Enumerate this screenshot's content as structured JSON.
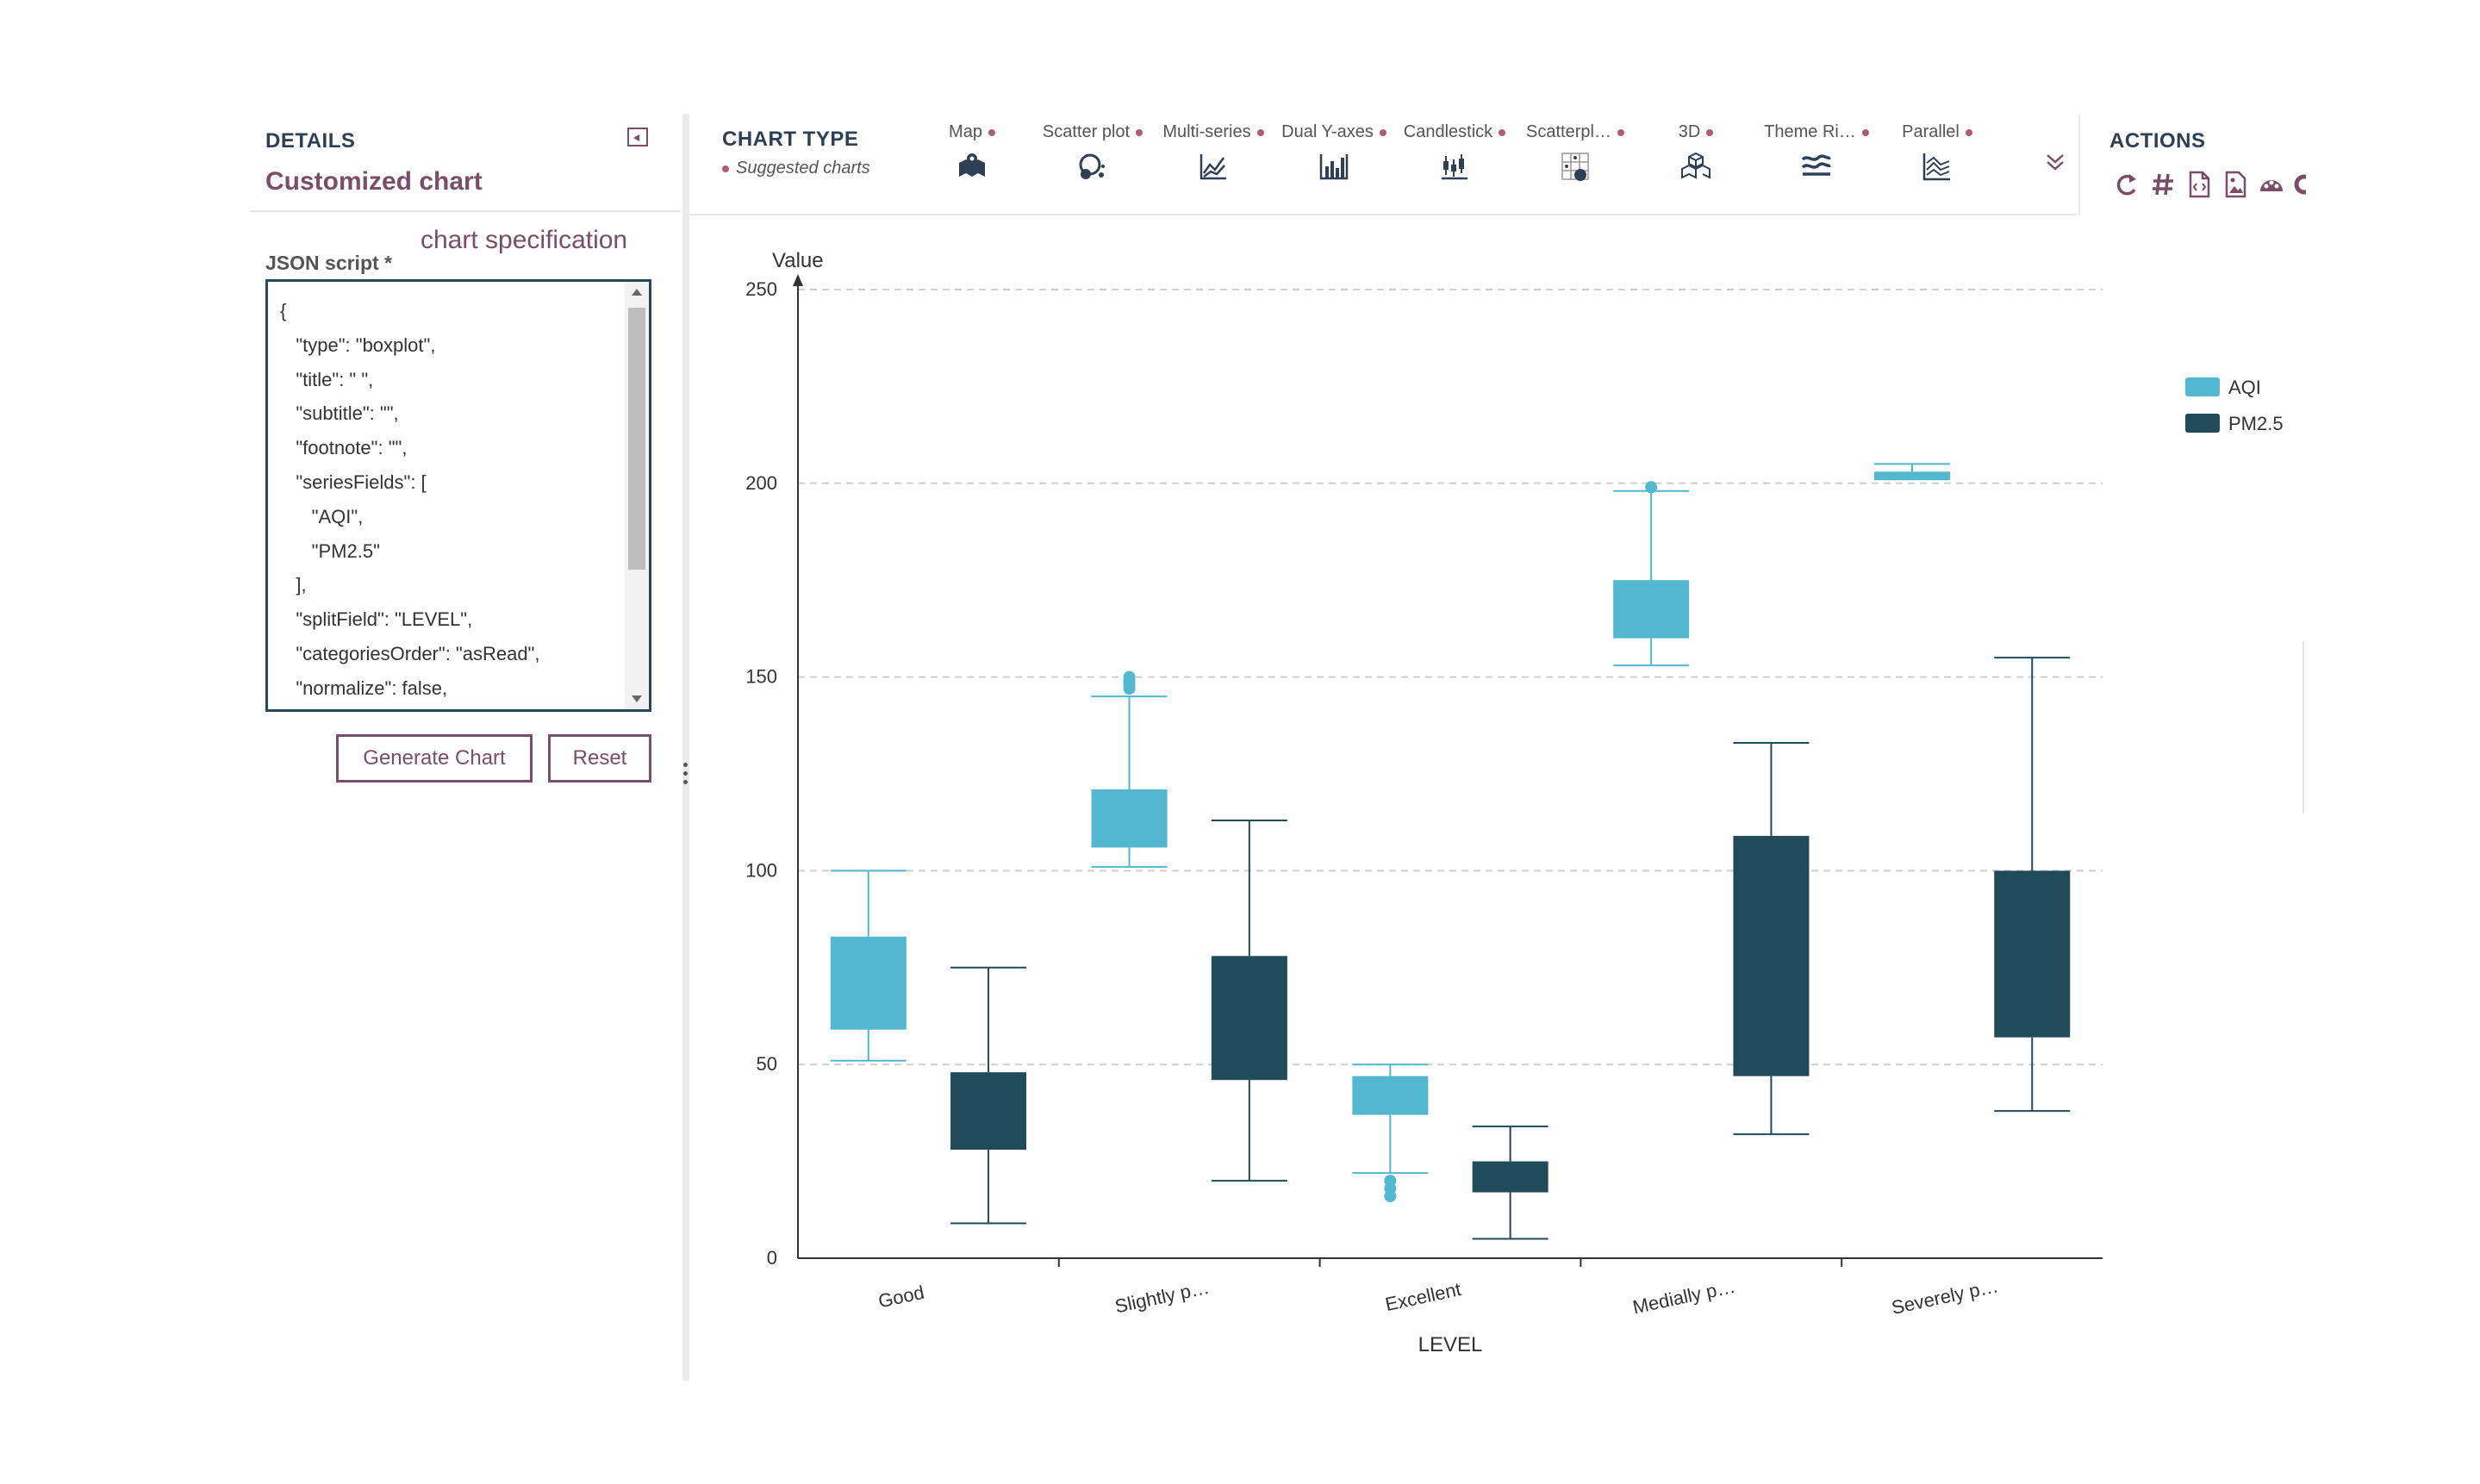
{
  "details": {
    "section_label": "DETAILS",
    "title": "Customized chart",
    "json_label": "JSON script *",
    "spec_note": "chart specification",
    "json_lines": [
      "{",
      "   \"type\": \"boxplot\",",
      "   \"title\": \" \",",
      "   \"subtitle\": \"\",",
      "   \"footnote\": \"\",",
      "   \"seriesFields\": [",
      "      \"AQI\",",
      "      \"PM2.5\"",
      "   ],",
      "   \"splitField\": \"LEVEL\",",
      "   \"categoriesOrder\": \"asRead\",",
      "   \"normalize\": false,"
    ],
    "generate_label": "Generate Chart",
    "reset_label": "Reset"
  },
  "chart_type": {
    "section_label": "CHART TYPE",
    "suggested_label": "Suggested charts",
    "items": [
      {
        "label": "Map",
        "icon": "map-icon"
      },
      {
        "label": "Scatter plot",
        "icon": "scatter-plot-icon"
      },
      {
        "label": "Multi-series",
        "icon": "multi-series-icon"
      },
      {
        "label": "Dual Y-axes",
        "icon": "dual-y-axes-icon"
      },
      {
        "label": "Candlestick",
        "icon": "candlestick-icon"
      },
      {
        "label": "Scatterpl…",
        "icon": "scatterplot-matrix-icon"
      },
      {
        "label": "3D",
        "icon": "3d-icon"
      },
      {
        "label": "Theme Ri…",
        "icon": "theme-river-icon"
      },
      {
        "label": "Parallel",
        "icon": "parallel-icon"
      }
    ]
  },
  "actions": {
    "section_label": "ACTIONS",
    "icons": [
      "refresh-icon",
      "hash-icon",
      "export-code-icon",
      "export-image-icon",
      "dashboard-icon",
      "settings-icon"
    ]
  },
  "colors": {
    "accent": "#7a4e66",
    "aqi": "#52b7cf",
    "pm25": "#224b5a",
    "header_text": "#2f3f55"
  },
  "chart_data": {
    "type": "boxplot",
    "ylabel": "Value",
    "xlabel": "LEVEL",
    "ylim": [
      0,
      250
    ],
    "yticks": [
      0,
      50,
      100,
      150,
      200,
      250
    ],
    "categories": [
      "Good",
      "Slightly p…",
      "Excellent",
      "Medially p…",
      "Severely p…"
    ],
    "legend_position": "top-right",
    "grid": true,
    "series": [
      {
        "name": "AQI",
        "color": "#52b7cf",
        "boxes": [
          {
            "min": 51,
            "q1": 59,
            "q3": 83,
            "max": 100,
            "outliers": []
          },
          {
            "min": 101,
            "q1": 106,
            "q3": 121,
            "max": 145,
            "outliers": [
              147,
              148,
              149,
              150
            ]
          },
          {
            "min": 22,
            "q1": 37,
            "q3": 47,
            "max": 50,
            "outliers": [
              16,
              18,
              20
            ]
          },
          {
            "min": 153,
            "q1": 160,
            "q3": 175,
            "max": 198,
            "outliers": [
              199
            ]
          },
          {
            "min": 201,
            "q1": 201,
            "q3": 203,
            "max": 205,
            "outliers": []
          }
        ]
      },
      {
        "name": "PM2.5",
        "color": "#224b5a",
        "boxes": [
          {
            "min": 9,
            "q1": 28,
            "q3": 48,
            "max": 75,
            "outliers": []
          },
          {
            "min": 20,
            "q1": 46,
            "q3": 78,
            "max": 113,
            "outliers": []
          },
          {
            "min": 5,
            "q1": 17,
            "q3": 25,
            "max": 34,
            "outliers": []
          },
          {
            "min": 32,
            "q1": 47,
            "q3": 109,
            "max": 133,
            "outliers": []
          },
          {
            "min": 38,
            "q1": 57,
            "q3": 100,
            "max": 155,
            "outliers": []
          }
        ]
      }
    ]
  }
}
